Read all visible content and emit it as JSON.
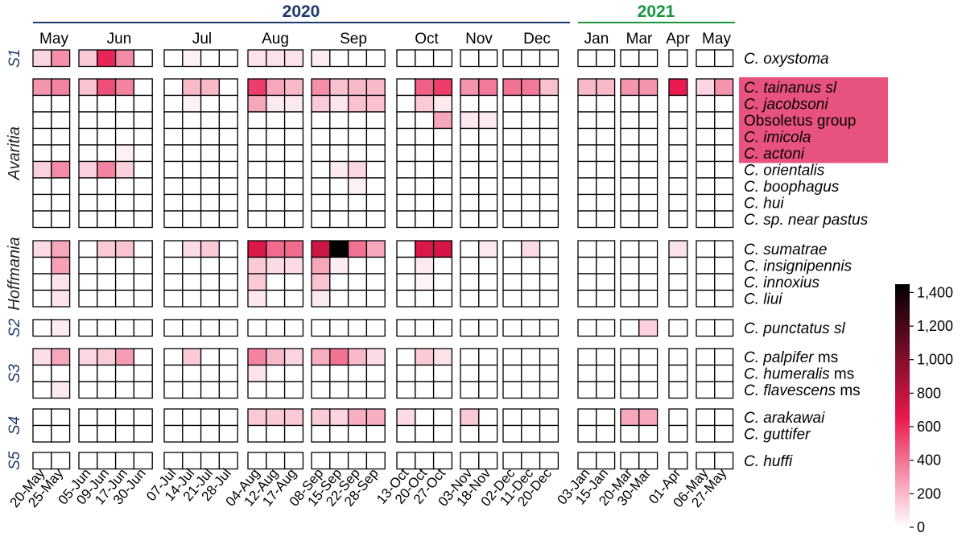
{
  "chart_data": {
    "type": "heatmap",
    "years": [
      {
        "label": "2020",
        "color": "#1f3a6e"
      },
      {
        "label": "2021",
        "color": "#1a9641"
      }
    ],
    "months": [
      "May",
      "Jun",
      "Jul",
      "Aug",
      "Sep",
      "Oct",
      "Nov",
      "Dec",
      "Jan",
      "Mar",
      "Apr",
      "May"
    ],
    "dates": [
      "20-May",
      "25-May",
      "05-Jun",
      "09-Jun",
      "17-Jun",
      "30-Jun",
      "07-Jul",
      "14-Jul",
      "21-Jul",
      "28-Jul",
      "04-Aug",
      "12-Aug",
      "17-Aug",
      "08-Sep",
      "15-Sep",
      "22-Sep",
      "28-Sep",
      "13-Oct",
      "20-Oct",
      "27-Oct",
      "03-Nov",
      "18-Nov",
      "02-Dec",
      "11-Dec",
      "20-Dec",
      "03-Jan",
      "15-Jan",
      "20-Mar",
      "30-Mar",
      "01-Apr",
      "06-May",
      "27-May"
    ],
    "groups": [
      {
        "label": "S1",
        "italic": true,
        "color": "#1f3a6e",
        "species": [
          {
            "pre": "C.",
            "name": "oxystoma",
            "suffix": ""
          }
        ],
        "values": [
          [
            120,
            320,
            150,
            620,
            330,
            0,
            0,
            40,
            0,
            0,
            80,
            80,
            80,
            50,
            0,
            0,
            0,
            0,
            0,
            0,
            0,
            0,
            0,
            0,
            0,
            0,
            0,
            0,
            0,
            0,
            0,
            0
          ]
        ]
      },
      {
        "label": "Avaritia",
        "italic": true,
        "color": "#222222",
        "species": [
          {
            "pre": "C.",
            "name": "tainanus sl",
            "suffix": ""
          },
          {
            "pre": "C.",
            "name": "jacobsoni",
            "suffix": ""
          },
          {
            "pre": "",
            "name": "",
            "suffix": "Obsoletus group"
          },
          {
            "pre": "C.",
            "name": "imicola",
            "suffix": ""
          },
          {
            "pre": "C.",
            "name": "actoni",
            "suffix": ""
          },
          {
            "pre": "C.",
            "name": "orientalis",
            "suffix": ""
          },
          {
            "pre": "C.",
            "name": "boophagus",
            "suffix": ""
          },
          {
            "pre": "C.",
            "name": "hui",
            "suffix": ""
          },
          {
            "pre": "C.",
            "name": "sp. near",
            "suffix": "",
            "tail": "pastus"
          }
        ],
        "values": [
          [
            300,
            350,
            170,
            500,
            350,
            0,
            0,
            200,
            200,
            0,
            550,
            250,
            200,
            320,
            180,
            200,
            200,
            0,
            450,
            550,
            300,
            380,
            400,
            380,
            180,
            200,
            200,
            300,
            300,
            650,
            120,
            300
          ],
          [
            0,
            0,
            0,
            0,
            0,
            0,
            0,
            40,
            0,
            0,
            250,
            60,
            60,
            150,
            70,
            180,
            180,
            0,
            150,
            60,
            0,
            0,
            0,
            0,
            0,
            0,
            0,
            0,
            0,
            0,
            0,
            0
          ],
          [
            0,
            0,
            0,
            0,
            0,
            0,
            0,
            0,
            0,
            0,
            0,
            0,
            0,
            0,
            0,
            0,
            0,
            0,
            0,
            250,
            60,
            60,
            0,
            0,
            0,
            0,
            0,
            0,
            0,
            0,
            0,
            0
          ],
          [
            0,
            0,
            0,
            0,
            0,
            0,
            0,
            0,
            0,
            0,
            0,
            0,
            0,
            0,
            0,
            0,
            0,
            0,
            0,
            0,
            0,
            0,
            0,
            0,
            0,
            0,
            0,
            0,
            0,
            0,
            0,
            0
          ],
          [
            0,
            0,
            0,
            0,
            40,
            0,
            0,
            0,
            0,
            0,
            0,
            0,
            0,
            0,
            0,
            0,
            0,
            0,
            0,
            0,
            0,
            0,
            0,
            0,
            0,
            0,
            0,
            0,
            0,
            0,
            0,
            0
          ],
          [
            130,
            330,
            130,
            350,
            130,
            0,
            0,
            0,
            0,
            0,
            0,
            0,
            0,
            0,
            60,
            110,
            0,
            0,
            0,
            0,
            0,
            0,
            0,
            0,
            0,
            0,
            0,
            0,
            0,
            0,
            0,
            0
          ],
          [
            0,
            0,
            0,
            0,
            0,
            0,
            0,
            0,
            0,
            0,
            0,
            0,
            0,
            0,
            0,
            40,
            0,
            0,
            0,
            0,
            0,
            0,
            0,
            0,
            0,
            0,
            0,
            0,
            0,
            0,
            0,
            0
          ],
          [
            0,
            0,
            0,
            0,
            0,
            0,
            0,
            0,
            0,
            0,
            0,
            0,
            0,
            0,
            0,
            0,
            0,
            0,
            0,
            0,
            0,
            0,
            0,
            0,
            0,
            0,
            0,
            0,
            0,
            0,
            0,
            0
          ],
          [
            0,
            0,
            0,
            0,
            0,
            0,
            0,
            0,
            0,
            0,
            0,
            0,
            0,
            0,
            0,
            0,
            0,
            0,
            0,
            0,
            0,
            0,
            0,
            0,
            0,
            0,
            0,
            0,
            0,
            0,
            0,
            0
          ]
        ]
      },
      {
        "label": "Hoffmania",
        "italic": true,
        "color": "#222222",
        "species": [
          {
            "pre": "C.",
            "name": "sumatrae",
            "suffix": ""
          },
          {
            "pre": "C.",
            "name": "insignipennis",
            "suffix": ""
          },
          {
            "pre": "C.",
            "name": "innoxius",
            "suffix": ""
          },
          {
            "pre": "C.",
            "name": "liui",
            "suffix": ""
          }
        ],
        "values": [
          [
            100,
            250,
            0,
            150,
            170,
            0,
            0,
            100,
            150,
            0,
            700,
            420,
            420,
            750,
            1450,
            400,
            250,
            0,
            700,
            720,
            0,
            60,
            0,
            100,
            0,
            0,
            0,
            0,
            0,
            80,
            0,
            0
          ],
          [
            0,
            270,
            0,
            0,
            0,
            0,
            0,
            0,
            0,
            0,
            150,
            100,
            100,
            250,
            50,
            0,
            0,
            0,
            60,
            0,
            0,
            0,
            0,
            0,
            0,
            0,
            0,
            0,
            0,
            0,
            0,
            0
          ],
          [
            0,
            80,
            0,
            0,
            0,
            0,
            0,
            0,
            0,
            0,
            150,
            0,
            0,
            170,
            0,
            0,
            0,
            0,
            30,
            0,
            0,
            0,
            0,
            0,
            0,
            0,
            0,
            0,
            0,
            0,
            0,
            0
          ],
          [
            0,
            80,
            0,
            0,
            0,
            0,
            0,
            0,
            0,
            0,
            70,
            0,
            0,
            60,
            0,
            0,
            0,
            0,
            0,
            0,
            0,
            0,
            0,
            0,
            0,
            0,
            0,
            0,
            0,
            0,
            0,
            0
          ]
        ]
      },
      {
        "label": "S2",
        "italic": true,
        "color": "#1f3a6e",
        "species": [
          {
            "pre": "C.",
            "name": "punctatus sl",
            "suffix": ""
          }
        ],
        "values": [
          [
            0,
            50,
            0,
            0,
            0,
            0,
            0,
            0,
            0,
            0,
            0,
            0,
            0,
            0,
            0,
            0,
            0,
            0,
            0,
            0,
            0,
            0,
            0,
            0,
            0,
            0,
            0,
            0,
            130,
            0,
            0,
            0
          ]
        ]
      },
      {
        "label": "S3",
        "italic": true,
        "color": "#1f3a6e",
        "species": [
          {
            "pre": "C.",
            "name": "palpifer",
            "suffix": " ms"
          },
          {
            "pre": "C.",
            "name": "humeralis",
            "suffix": " ms"
          },
          {
            "pre": "C.",
            "name": "flavescens",
            "suffix": " ms"
          }
        ],
        "values": [
          [
            90,
            250,
            110,
            140,
            280,
            0,
            0,
            150,
            0,
            0,
            350,
            200,
            120,
            230,
            400,
            200,
            100,
            0,
            150,
            80,
            0,
            0,
            0,
            0,
            0,
            0,
            0,
            0,
            0,
            0,
            0,
            0
          ],
          [
            0,
            0,
            0,
            0,
            0,
            0,
            0,
            0,
            0,
            0,
            80,
            0,
            0,
            0,
            0,
            0,
            0,
            0,
            0,
            0,
            0,
            0,
            0,
            0,
            0,
            0,
            0,
            0,
            0,
            0,
            0,
            0
          ],
          [
            0,
            60,
            0,
            0,
            0,
            0,
            0,
            0,
            0,
            0,
            0,
            0,
            0,
            0,
            0,
            0,
            0,
            0,
            0,
            0,
            0,
            0,
            0,
            0,
            0,
            0,
            0,
            0,
            0,
            0,
            0,
            0
          ]
        ]
      },
      {
        "label": "S4",
        "italic": true,
        "color": "#1f3a6e",
        "species": [
          {
            "pre": "C.",
            "name": "arakawai",
            "suffix": ""
          },
          {
            "pre": "C.",
            "name": "guttifer",
            "suffix": ""
          }
        ],
        "values": [
          [
            0,
            0,
            0,
            0,
            0,
            0,
            0,
            0,
            0,
            0,
            150,
            150,
            150,
            150,
            120,
            230,
            230,
            100,
            0,
            0,
            150,
            0,
            0,
            0,
            0,
            0,
            0,
            250,
            250,
            0,
            0,
            0
          ],
          [
            0,
            0,
            0,
            0,
            0,
            0,
            0,
            0,
            0,
            0,
            0,
            0,
            0,
            0,
            0,
            0,
            0,
            0,
            0,
            0,
            0,
            0,
            0,
            0,
            0,
            0,
            0,
            0,
            0,
            0,
            0,
            0
          ]
        ]
      },
      {
        "label": "S5",
        "italic": true,
        "color": "#1f3a6e",
        "species": [
          {
            "pre": "C.",
            "name": "huffi",
            "suffix": ""
          }
        ],
        "values": [
          [
            0,
            0,
            0,
            0,
            0,
            0,
            0,
            0,
            0,
            0,
            0,
            0,
            0,
            0,
            0,
            0,
            0,
            0,
            0,
            0,
            0,
            0,
            0,
            0,
            0,
            0,
            0,
            0,
            0,
            0,
            0,
            0
          ]
        ]
      }
    ],
    "highlight": {
      "color": "#e8527e"
    },
    "colorbar": {
      "min": 0,
      "max": 1450,
      "ticks": [
        "0",
        "200",
        "400",
        "600",
        "800",
        "1,000",
        "1,200",
        "1,400"
      ],
      "tick_values": [
        0,
        200,
        400,
        600,
        800,
        1000,
        1200,
        1400
      ]
    },
    "colors": {
      "low": "#ffffff",
      "mid": "#e8194f",
      "high": "#000000"
    }
  }
}
